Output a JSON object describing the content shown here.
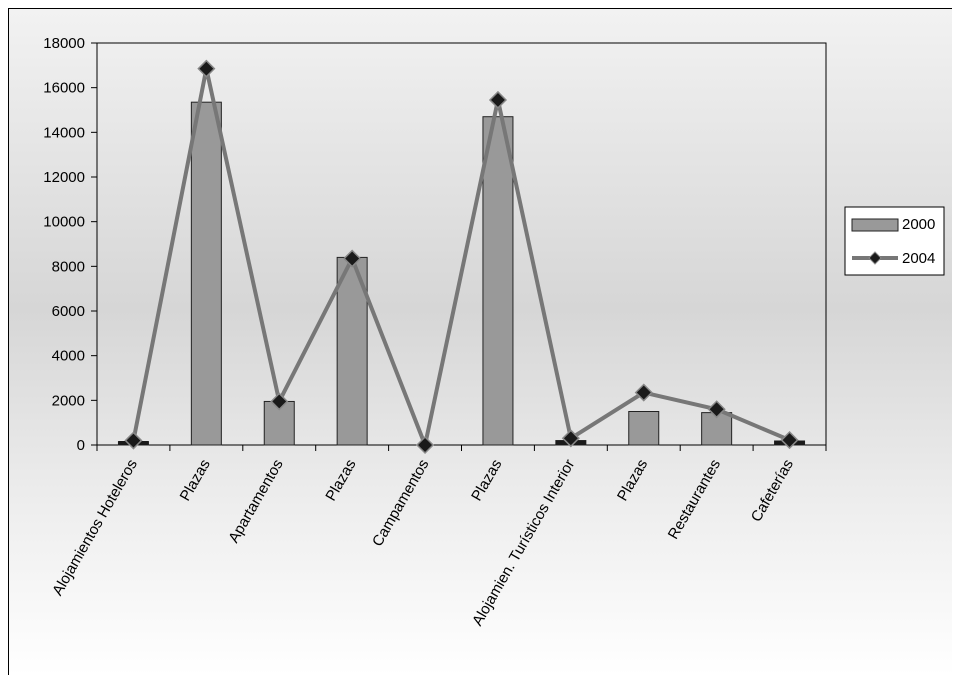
{
  "chart_data": {
    "type": "bar",
    "categories": [
      "Alojamientos Hoteleros",
      "Plazas",
      "Apartamentos",
      "Plazas",
      "Campamentos",
      "Plazas",
      "Alojamien. Turísticos Interior",
      "Plazas",
      "Restaurantes",
      "Cafeterías"
    ],
    "series": [
      {
        "name": "2000",
        "type": "bar",
        "color": "#999999",
        "values": [
          150,
          15350,
          1950,
          8400,
          0,
          14700,
          200,
          1500,
          1450,
          180
        ]
      },
      {
        "name": "2004",
        "type": "line",
        "color": "#777777",
        "marker_color": "#1a1a1a",
        "values": [
          200,
          16850,
          1950,
          8350,
          0,
          15450,
          300,
          2350,
          1600,
          220
        ]
      }
    ],
    "title": "",
    "xlabel": "",
    "ylabel": "",
    "ylim": [
      0,
      18000
    ],
    "yticks": [
      "0",
      "2000",
      "4000",
      "6000",
      "8000",
      "10000",
      "12000",
      "14000",
      "16000",
      "18000"
    ],
    "grid": false,
    "legend_position": "right"
  }
}
